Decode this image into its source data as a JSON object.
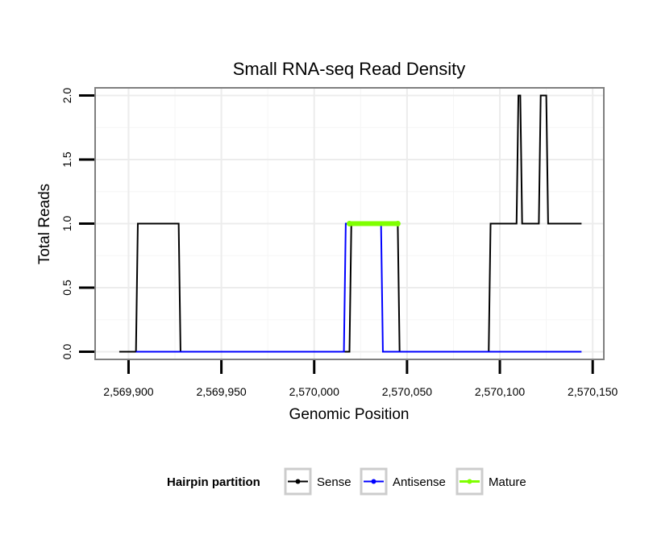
{
  "chart_data": {
    "type": "line",
    "title": "Small RNA-seq Read Density",
    "xlabel": "Genomic Position",
    "ylabel": "Total Reads",
    "xlim": [
      2569882,
      2570156
    ],
    "ylim": [
      -0.06,
      2.06
    ],
    "grid": true,
    "x_ticks": [
      2569900,
      2569950,
      2570000,
      2570050,
      2570100,
      2570150
    ],
    "x_tick_labels": [
      "2,569,900",
      "2,569,950",
      "2,570,000",
      "2,570,050",
      "2,570,100",
      "2,570,150"
    ],
    "y_ticks": [
      0,
      0.5,
      1,
      1.5,
      2
    ],
    "y_tick_labels": [
      "0.0",
      "0.5",
      "1.0",
      "1.5",
      "2.0"
    ],
    "legend": {
      "title": "Hairpin partition",
      "position": "bottom",
      "entries": [
        "Sense",
        "Antisense",
        "Mature"
      ]
    },
    "series": [
      {
        "name": "Sense",
        "color": "#000000",
        "points": [
          [
            2569895,
            0
          ],
          [
            2569904,
            0
          ],
          [
            2569905,
            1
          ],
          [
            2569927,
            1
          ],
          [
            2569928,
            0
          ],
          [
            2570019,
            0
          ],
          [
            2570020,
            1
          ],
          [
            2570045,
            1
          ],
          [
            2570046,
            0
          ],
          [
            2570094,
            0
          ],
          [
            2570095,
            1
          ],
          [
            2570109,
            1
          ],
          [
            2570110,
            2
          ],
          [
            2570111,
            2
          ],
          [
            2570112,
            1
          ],
          [
            2570121,
            1
          ],
          [
            2570122,
            2
          ],
          [
            2570125,
            2
          ],
          [
            2570126,
            1
          ],
          [
            2570144,
            1
          ]
        ]
      },
      {
        "name": "Antisense",
        "color": "#0000ff",
        "points": [
          [
            2569904,
            0
          ],
          [
            2570016,
            0
          ],
          [
            2570017,
            1
          ],
          [
            2570036,
            1
          ],
          [
            2570037,
            0
          ],
          [
            2570144,
            0
          ]
        ]
      },
      {
        "name": "Mature",
        "color": "#7fff00",
        "points": [
          [
            2570019,
            1
          ],
          [
            2570045,
            1
          ]
        ]
      }
    ]
  }
}
